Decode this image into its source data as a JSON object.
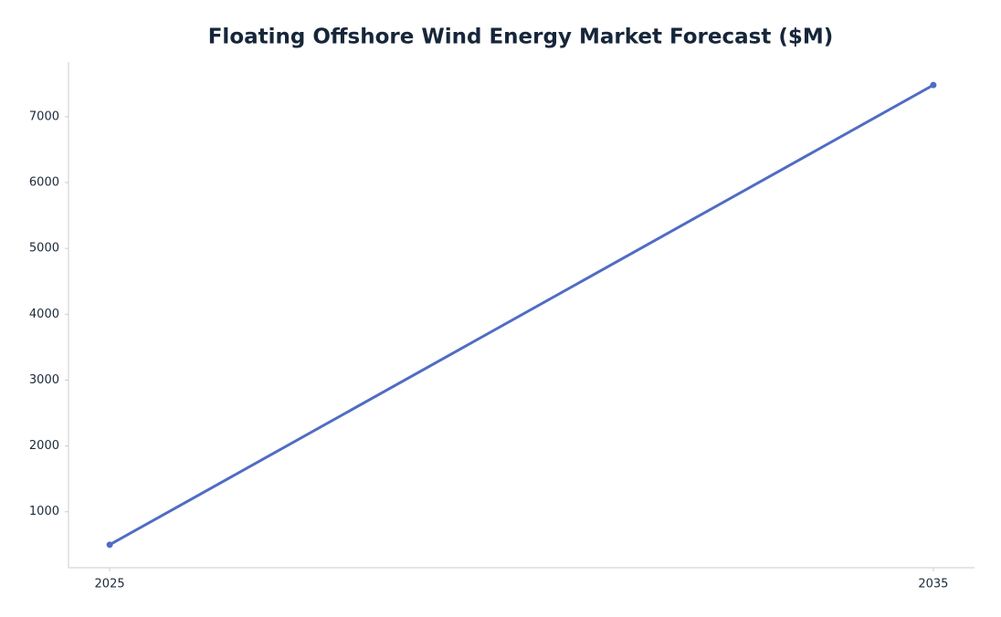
{
  "chart_data": {
    "type": "line",
    "title": "Floating Offshore Wind Energy Market Forecast ($M)",
    "x": [
      2025,
      2035
    ],
    "series": [
      {
        "color": "#506cc4",
        "values": [
          500,
          7480
        ]
      }
    ],
    "xlim": [
      2024.5,
      2035.5
    ],
    "xticks": [
      2025,
      2035
    ],
    "ylim": [
      151,
      7829
    ],
    "yticks": [
      1000,
      2000,
      3000,
      4000,
      5000,
      6000,
      7000
    ],
    "grid": false
  }
}
